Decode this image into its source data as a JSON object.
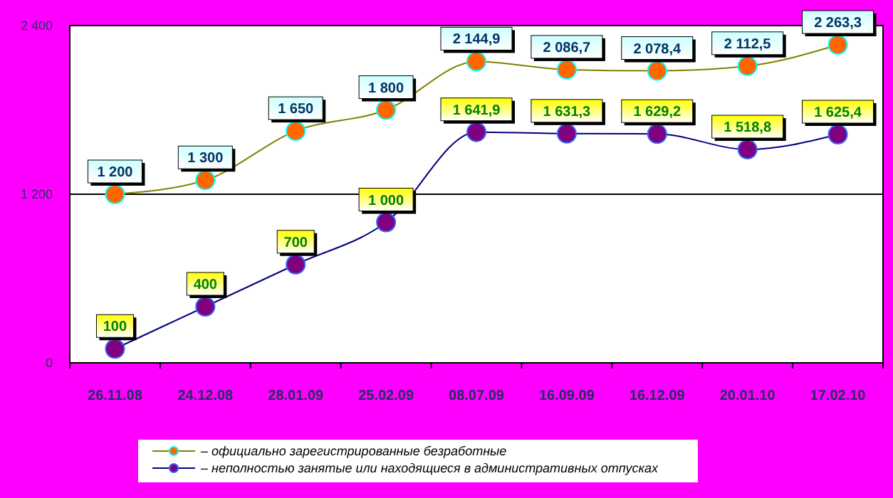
{
  "chart_data": {
    "type": "line",
    "categories": [
      "26.11.08",
      "24.12.08",
      "28.01.09",
      "25.02.09",
      "08.07.09",
      "16.09.09",
      "16.12.09",
      "20.01.10",
      "17.02.10"
    ],
    "series": [
      {
        "name": "– официально зарегистрированные безработные",
        "color": "#ff6600",
        "values": [
          1200,
          1300,
          1650,
          1800,
          2144.9,
          2086.7,
          2078.4,
          2112.5,
          2263.3
        ],
        "value_labels": [
          "1 200",
          "1 300",
          "1 650",
          "1 800",
          "2 144,9",
          "2 086,7",
          "2 078,4",
          "2 112,5",
          "2 263,3"
        ]
      },
      {
        "name": "– неполностью занятые или находящиеся в административных отпусках",
        "color": "#800080",
        "values": [
          100,
          400,
          700,
          1000,
          1641.9,
          1631.3,
          1629.2,
          1518.8,
          1625.4
        ],
        "value_labels": [
          "100",
          "400",
          "700",
          "1 000",
          "1 641,9",
          "1 631,3",
          "1 629,2",
          "1 518,8",
          "1 625,4"
        ]
      }
    ],
    "ylim": [
      0,
      2400
    ],
    "yticks": [
      {
        "value": 0,
        "label": "0"
      },
      {
        "value": 1200,
        "label": "1 200"
      },
      {
        "value": 2400,
        "label": "2 400"
      }
    ],
    "grid": "y",
    "legend": "bottom",
    "marker": "circle",
    "line_style": "solid"
  }
}
